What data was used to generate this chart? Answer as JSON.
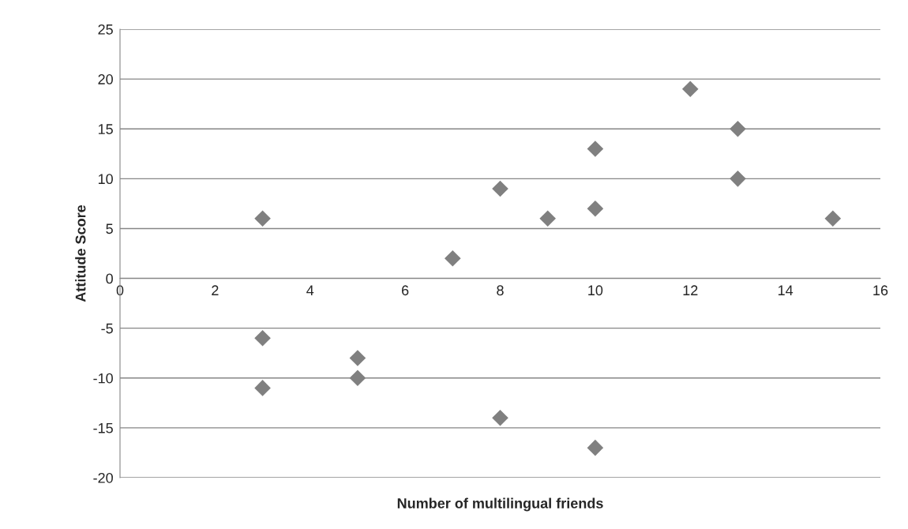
{
  "chart_data": {
    "type": "scatter",
    "xlabel": "Number of multilingual friends",
    "ylabel": "Attitude Score",
    "series": [
      {
        "color": "#808080",
        "x": [
          3,
          3,
          3,
          5,
          5,
          7,
          8,
          8,
          9,
          10,
          10,
          10,
          12,
          13,
          13,
          15
        ],
        "values": [
          6,
          -6,
          -11,
          -8,
          -10,
          2,
          9,
          -14,
          6,
          13,
          7,
          -17,
          19,
          15,
          10,
          6
        ]
      }
    ],
    "xlim": [
      0,
      16
    ],
    "xticks": [
      0,
      2,
      4,
      6,
      8,
      10,
      12,
      14,
      16
    ],
    "ylim": [
      -20,
      25
    ],
    "yticks": [
      -20,
      -15,
      -10,
      -5,
      0,
      5,
      10,
      15,
      20,
      25
    ],
    "grid": "y",
    "marker": "diamond",
    "legend": false
  }
}
